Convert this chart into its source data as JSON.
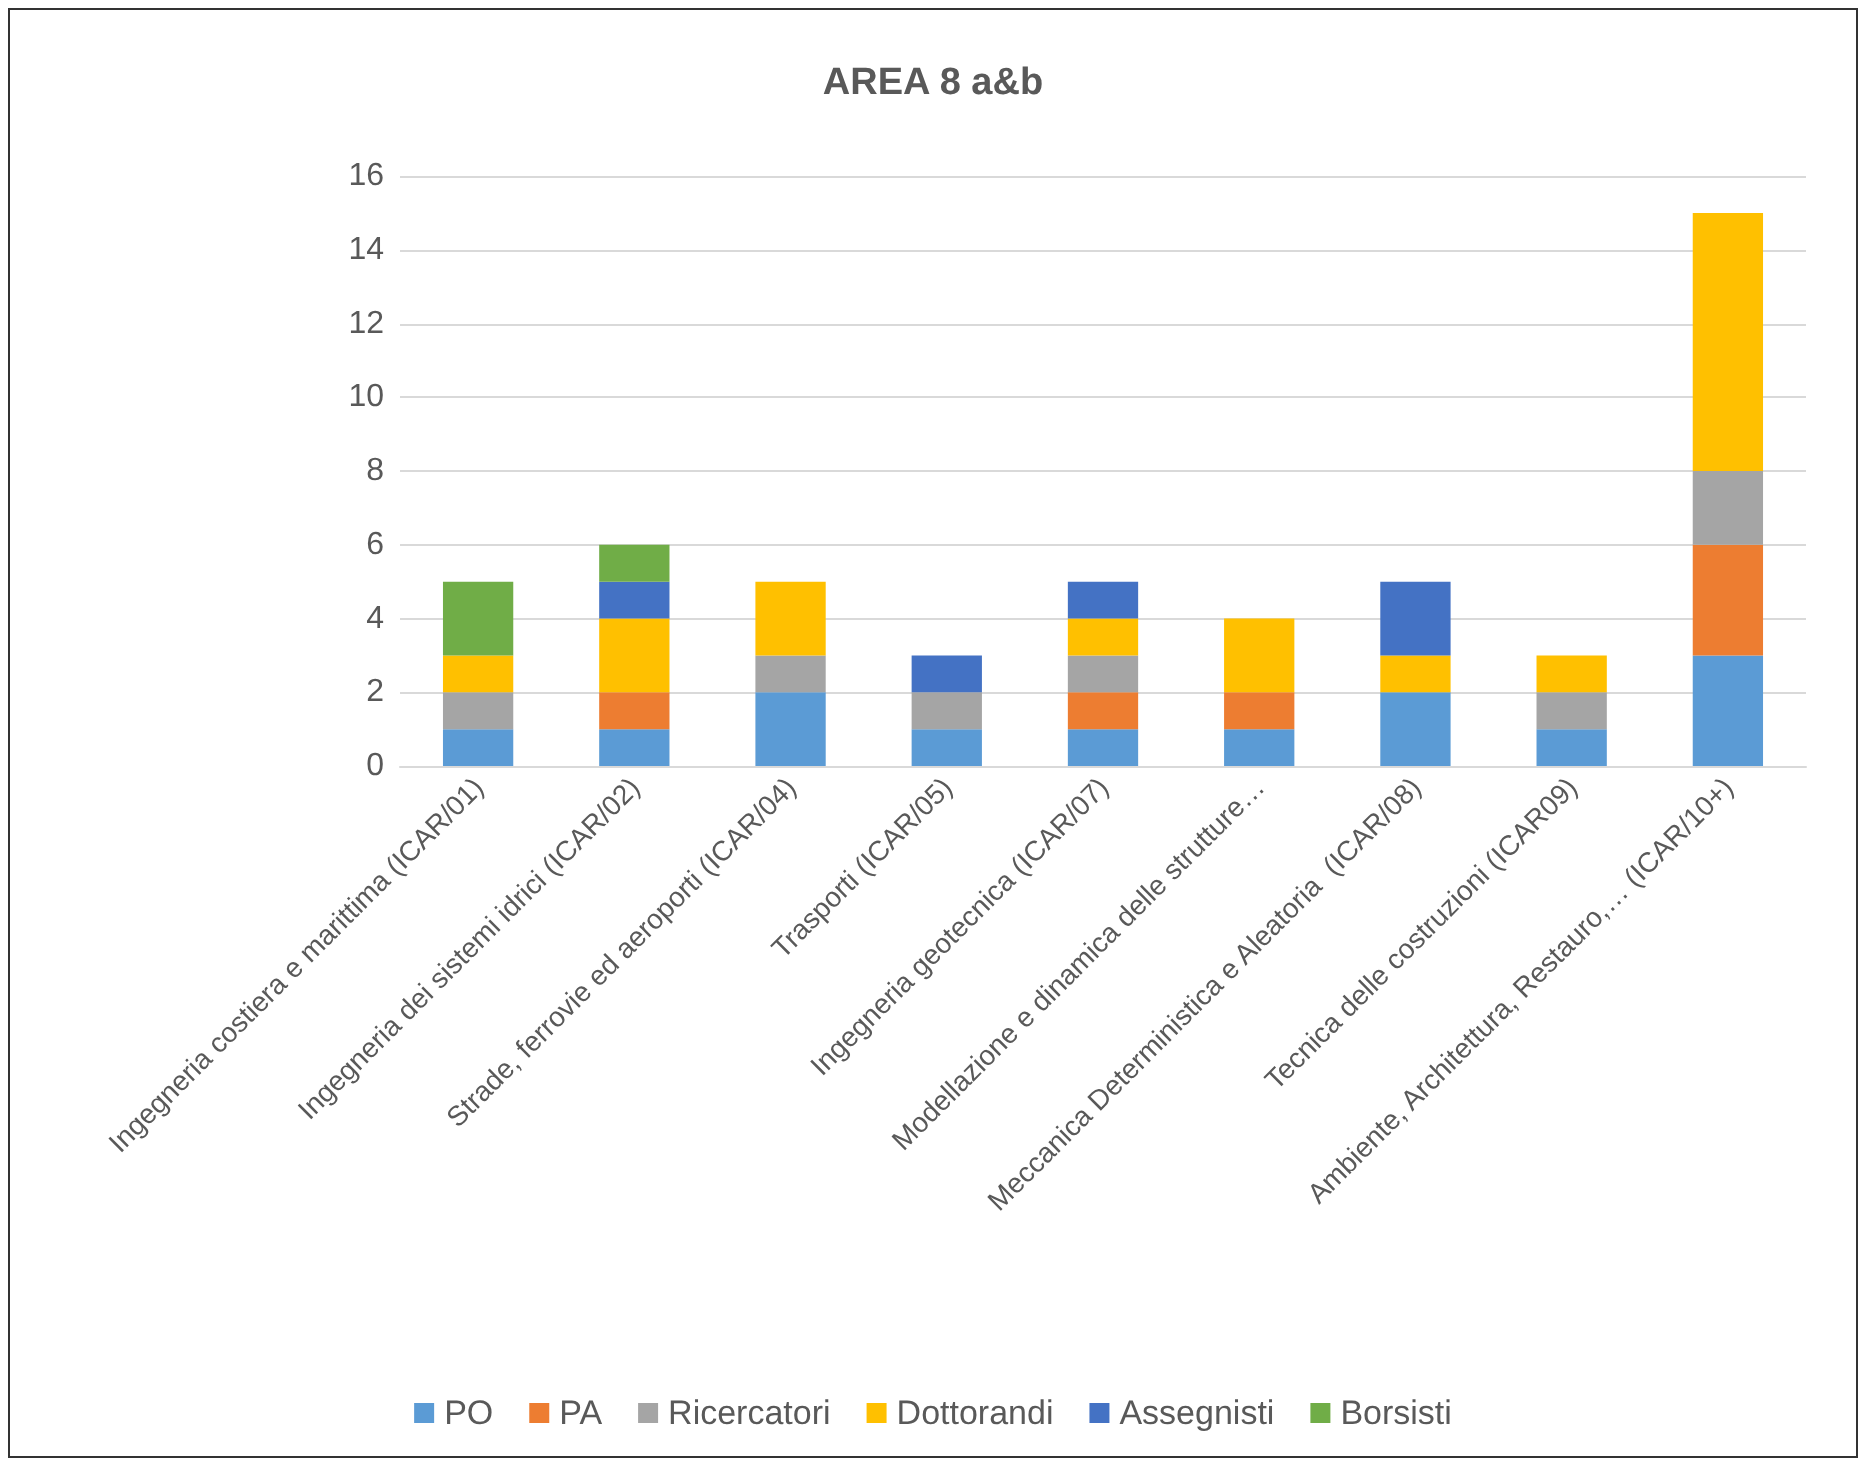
{
  "chart_data": {
    "type": "bar",
    "title": "AREA 8 a&b",
    "stacked": true,
    "categories": [
      "Ingegneria costiera e marittima (ICAR/01)",
      "Ingegneria dei sistemi idrici (ICAR/02)",
      "Strade, ferrovie ed aeroporti (ICAR/04)",
      "Trasporti (ICAR/05)",
      "Ingegneria geotecnica (ICAR/07)",
      "Modellazione e dinamica delle strutture…",
      "Meccanica Deterministica e Aleatoria  (ICAR/08)",
      "Tecnica delle costruzioni (ICAR09)",
      "Ambiente, Architettura, Restauro,… (ICAR/10+)"
    ],
    "series": [
      {
        "name": "PO",
        "color": "#5b9bd5",
        "values": [
          1,
          1,
          2,
          1,
          1,
          1,
          2,
          1,
          3
        ]
      },
      {
        "name": "PA",
        "color": "#ed7d31",
        "values": [
          0,
          1,
          0,
          0,
          1,
          1,
          0,
          0,
          3
        ]
      },
      {
        "name": "Ricercatori",
        "color": "#a5a5a5",
        "values": [
          1,
          0,
          1,
          1,
          1,
          0,
          0,
          1,
          2
        ]
      },
      {
        "name": "Dottorandi",
        "color": "#ffc000",
        "values": [
          1,
          2,
          2,
          0,
          1,
          2,
          1,
          1,
          7
        ]
      },
      {
        "name": "Assegnisti",
        "color": "#4472c4",
        "values": [
          0,
          1,
          0,
          1,
          1,
          0,
          2,
          0,
          0
        ]
      },
      {
        "name": "Borsisti",
        "color": "#70ad47",
        "values": [
          2,
          1,
          0,
          0,
          0,
          0,
          0,
          0,
          0
        ]
      }
    ],
    "ylim": [
      0,
      16
    ],
    "yticks": [
      0,
      2,
      4,
      6,
      8,
      10,
      12,
      14,
      16
    ],
    "grid": "y",
    "legend": "bottom"
  }
}
